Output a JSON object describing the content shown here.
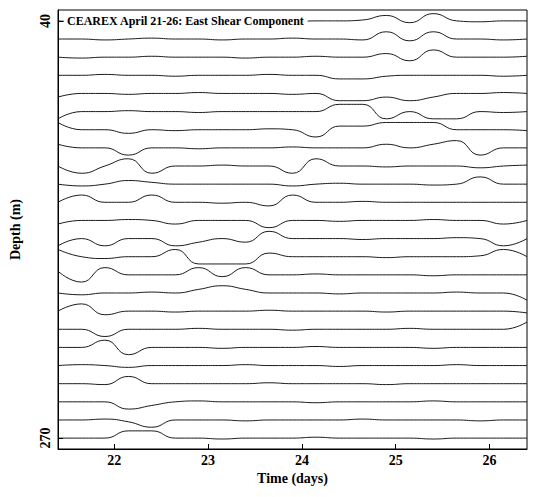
{
  "chart_data": {
    "type": "line",
    "title": "CEAREX April 21-26: East Shear Component",
    "x_label": "Time (days)",
    "y_label": "Depth (m)",
    "color": "#000000",
    "grid": false,
    "xlim": [
      21.4,
      26.4
    ],
    "xticks": [
      22,
      23,
      24,
      25,
      26
    ],
    "ylim": [
      34,
      276
    ],
    "yticks": [
      40,
      270
    ],
    "x": [
      21.4,
      21.65,
      21.9,
      22.15,
      22.4,
      22.65,
      22.9,
      23.15,
      23.4,
      23.65,
      23.9,
      24.15,
      24.4,
      24.65,
      24.9,
      25.15,
      25.4,
      25.65,
      25.9,
      26.15,
      26.4
    ],
    "series": [
      {
        "values": [
          40,
          40.5,
          40,
          39.5,
          40,
          40.5,
          40,
          40,
          39.5,
          40,
          40.5,
          40,
          40,
          39.5,
          37,
          41,
          36,
          40,
          40.5,
          40,
          40
        ]
      },
      {
        "values": [
          50,
          50,
          50.5,
          50,
          49.5,
          50,
          50,
          50.5,
          50,
          50,
          49.5,
          50,
          50,
          50.5,
          46,
          51,
          46,
          50,
          50,
          50.5,
          50
        ]
      },
      {
        "values": [
          60,
          60.5,
          60,
          60,
          59.5,
          60,
          60,
          60,
          60.5,
          60,
          60,
          59.5,
          60,
          60,
          58,
          62,
          56,
          60,
          60,
          60,
          59.5
        ]
      },
      {
        "values": [
          70,
          70,
          69.5,
          70,
          70,
          70.5,
          70,
          70,
          70,
          69.5,
          70,
          70,
          72,
          72,
          70.5,
          70,
          70,
          70,
          70,
          70.5,
          70
        ]
      },
      {
        "values": [
          82,
          80,
          80,
          80.5,
          80,
          80,
          79.5,
          80,
          80,
          80,
          80.5,
          80,
          84,
          84,
          82,
          84,
          82,
          80,
          80,
          79.5,
          80
        ]
      },
      {
        "values": [
          94,
          90,
          90,
          89.5,
          90,
          90,
          90.5,
          90,
          90,
          90,
          90,
          90,
          86,
          86,
          94,
          90,
          94,
          94,
          90,
          90.5,
          90
        ]
      },
      {
        "values": [
          96,
          100,
          100,
          102,
          100,
          100.5,
          100,
          100,
          100,
          99.5,
          100,
          104,
          98,
          98,
          96,
          96,
          96,
          100,
          100,
          100,
          100.5
        ]
      },
      {
        "values": [
          108,
          110,
          110,
          114,
          110,
          110,
          110.5,
          110,
          110,
          110,
          109.5,
          110,
          110,
          110,
          108,
          110,
          108,
          106,
          114,
          110,
          110
        ]
      },
      {
        "values": [
          120,
          124,
          120,
          116,
          124,
          120,
          120,
          119.5,
          120,
          120,
          124,
          116,
          120,
          120,
          120.5,
          120,
          120,
          120,
          121,
          120,
          119.5
        ]
      },
      {
        "values": [
          130,
          131,
          130,
          128,
          129,
          130,
          130,
          130,
          130,
          130,
          131,
          130,
          129.5,
          130,
          130,
          130,
          130.5,
          130,
          126,
          130,
          130
        ]
      },
      {
        "values": [
          140,
          136,
          140,
          140,
          136,
          140,
          140,
          140.5,
          140,
          142,
          136,
          140,
          140,
          139.5,
          140,
          140,
          140,
          140,
          140,
          140,
          140
        ]
      },
      {
        "values": [
          152,
          150,
          150,
          149.5,
          150,
          152,
          150,
          150,
          150,
          154,
          150,
          150,
          150.5,
          150,
          150,
          150,
          149.5,
          150,
          150,
          152,
          150
        ]
      },
      {
        "values": [
          164,
          160,
          164,
          160,
          160,
          164,
          162,
          160,
          162,
          156,
          160,
          160,
          160,
          160.5,
          160,
          160,
          160,
          159.5,
          160,
          164,
          160
        ]
      },
      {
        "values": [
          166,
          170,
          171,
          170,
          170,
          166,
          174,
          174,
          174,
          168,
          170,
          170,
          170,
          170,
          170.5,
          170,
          170,
          170,
          169.5,
          166,
          170
        ]
      },
      {
        "values": [
          178,
          184,
          176,
          180,
          180,
          180,
          176,
          181,
          176,
          180,
          180,
          179.5,
          180,
          180,
          180,
          180,
          180.5,
          180,
          180,
          180,
          180
        ]
      },
      {
        "values": [
          190,
          191,
          190,
          190,
          189.5,
          190,
          188,
          186,
          188,
          190,
          190,
          190,
          190.5,
          190,
          190,
          190,
          190,
          189.5,
          190,
          190,
          194
        ]
      },
      {
        "values": [
          200,
          196,
          202,
          200,
          200,
          200.5,
          200,
          200,
          200,
          199.5,
          200,
          200,
          200,
          200,
          200.5,
          200,
          200,
          200,
          200,
          200,
          201
        ]
      },
      {
        "values": [
          210,
          210,
          214,
          210,
          210,
          210,
          209.5,
          210,
          210,
          210,
          210.5,
          210,
          210,
          210,
          210,
          209.5,
          210,
          210,
          210,
          210,
          206
        ]
      },
      {
        "values": [
          220,
          220,
          216,
          224,
          220,
          220,
          220,
          220.5,
          220,
          220,
          220,
          219.5,
          220,
          220,
          220,
          220,
          220.5,
          220,
          220,
          220,
          220
        ]
      },
      {
        "values": [
          230,
          229.5,
          230,
          231,
          230,
          230,
          230,
          230,
          229.5,
          230,
          230,
          230,
          230.5,
          230,
          230,
          230,
          230,
          229.5,
          230,
          230,
          230
        ]
      },
      {
        "values": [
          240,
          240,
          240.5,
          236,
          240,
          240,
          240,
          240,
          240,
          239.5,
          240,
          240,
          240,
          240,
          240.5,
          240,
          240,
          240,
          240,
          240,
          240
        ]
      },
      {
        "values": [
          250,
          250,
          250,
          254,
          252,
          250,
          249.5,
          250,
          250,
          250,
          250,
          250.5,
          250,
          250,
          250,
          250,
          249.5,
          250,
          250,
          250,
          250
        ]
      },
      {
        "values": [
          260,
          260,
          259.5,
          261,
          264,
          260,
          260,
          260,
          260.5,
          260,
          260,
          260,
          260,
          259.5,
          260,
          260,
          260,
          260,
          260.5,
          260,
          260
        ]
      },
      {
        "values": [
          270,
          270,
          270,
          266,
          266,
          270,
          270,
          270.5,
          270,
          270,
          270,
          269.5,
          270,
          270,
          270,
          270,
          270.5,
          270,
          270,
          270,
          270
        ]
      }
    ]
  }
}
